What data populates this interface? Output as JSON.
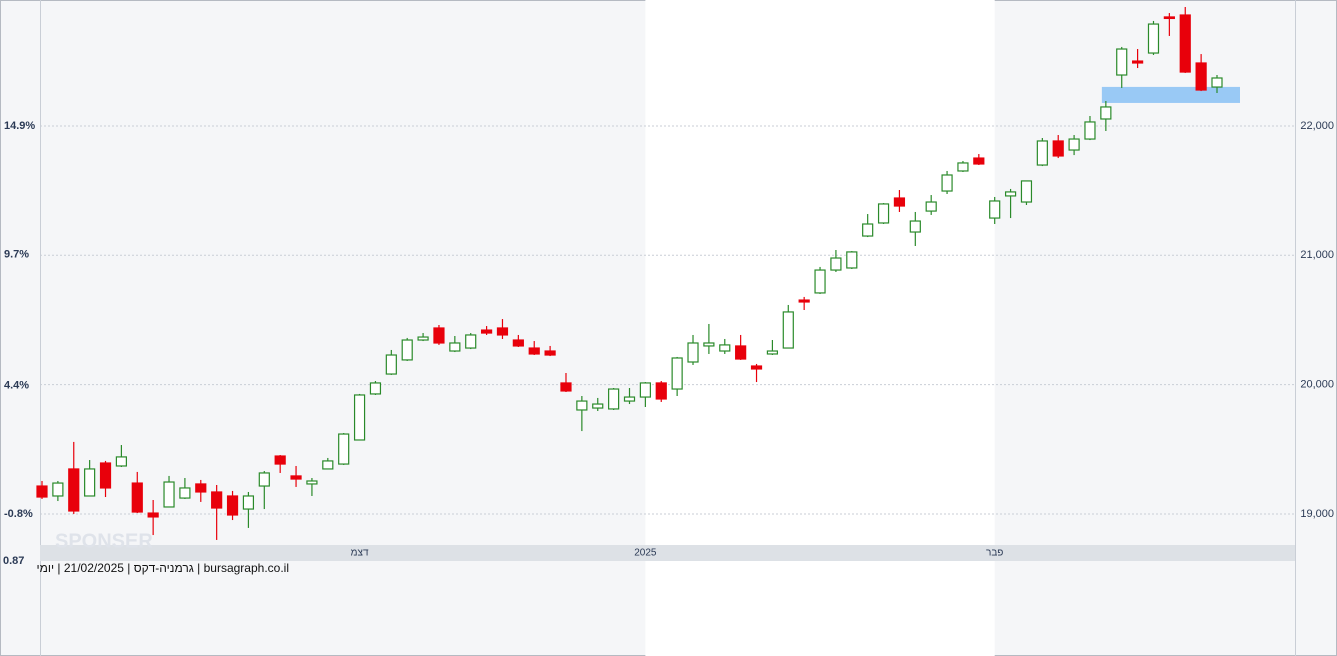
{
  "chart_data": {
    "type": "candlestick",
    "watermark": "SPONSER",
    "corner_label": "0.87",
    "caption": "bursagraph.co.il | גרמניה-דקס | 21/02/2025 | יומי",
    "categories": [
      null,
      null,
      null,
      null,
      null,
      null,
      null,
      null,
      null,
      null,
      null,
      null,
      null,
      null,
      null,
      null,
      null,
      null,
      null,
      null,
      "דצמ",
      null,
      null,
      null,
      null,
      null,
      null,
      null,
      null,
      null,
      null,
      null,
      null,
      null,
      null,
      null,
      null,
      null,
      "2025",
      null,
      null,
      null,
      null,
      null,
      null,
      null,
      null,
      null,
      null,
      null,
      null,
      null,
      null,
      null,
      null,
      null,
      null,
      null,
      null,
      null,
      "פבר",
      null,
      null,
      null,
      null,
      null,
      null,
      null,
      null,
      null,
      null,
      null,
      null,
      null,
      null
    ],
    "up_color": "#2a8a2a",
    "down_color": "#e8000b",
    "zone": {
      "low": 22178,
      "high": 22302,
      "color": "#99c9f5"
    },
    "series": [
      {
        "open": [
          19216,
          19139,
          19348,
          19139,
          19394,
          19371,
          19239,
          19007,
          19054,
          19123,
          19232,
          19170,
          19139,
          19038,
          19216,
          19448,
          19294,
          19232,
          19348,
          19386,
          19572,
          19928,
          20082,
          20191,
          20345,
          20438,
          20260,
          20283,
          20422,
          20438,
          20345,
          20283,
          20260,
          20013,
          19804,
          19819,
          19812,
          19873,
          19904,
          20013,
          19966,
          20175,
          20299,
          20260,
          20299,
          20144,
          20237,
          20283,
          20654,
          20709,
          20886,
          20902,
          21149,
          21250,
          21443,
          21180,
          21342,
          21497,
          21652,
          21752,
          21288,
          21459,
          21412,
          21698,
          21884,
          21814,
          21899,
          22054,
          22394,
          22502,
          22564,
          22843,
          22858,
          22487,
          22301
        ],
        "high": [
          19255,
          19255,
          19557,
          19417,
          19410,
          19533,
          19325,
          19108,
          19294,
          19278,
          19263,
          19224,
          19178,
          19170,
          19332,
          19456,
          19371,
          19278,
          19433,
          19626,
          19928,
          20028,
          20268,
          20361,
          20399,
          20461,
          20376,
          20399,
          20453,
          20507,
          20384,
          20337,
          20299,
          20090,
          19912,
          19897,
          19974,
          19974,
          20020,
          20028,
          20214,
          20384,
          20469,
          20353,
          20384,
          20160,
          20345,
          20616,
          20678,
          20910,
          21041,
          21033,
          21319,
          21404,
          21505,
          21335,
          21466,
          21652,
          21729,
          21783,
          21451,
          21513,
          21575,
          21907,
          21930,
          21930,
          22077,
          22193,
          22611,
          22595,
          22812,
          22873,
          22920,
          22556,
          22394
        ],
        "low": [
          19116,
          19100,
          19000,
          19139,
          19131,
          19363,
          19007,
          18837,
          19054,
          19116,
          19093,
          18799,
          18953,
          18892,
          19038,
          19317,
          19209,
          19139,
          19348,
          19379,
          19572,
          19920,
          20075,
          20183,
          20337,
          20307,
          20252,
          20275,
          20384,
          20353,
          20291,
          20229,
          20221,
          19943,
          19641,
          19796,
          19804,
          19850,
          19827,
          19866,
          19912,
          20152,
          20237,
          20237,
          20191,
          20020,
          20229,
          20283,
          20577,
          20701,
          20871,
          20894,
          21141,
          21242,
          21335,
          21072,
          21312,
          21474,
          21644,
          21698,
          21242,
          21288,
          21389,
          21690,
          21752,
          21775,
          21891,
          21961,
          22294,
          22448,
          22549,
          22696,
          22410,
          22270,
          22255
        ],
        "close": [
          19131,
          19239,
          19023,
          19348,
          19201,
          19441,
          19015,
          18977,
          19247,
          19201,
          19170,
          19046,
          18992,
          19139,
          19317,
          19386,
          19270,
          19255,
          19410,
          19618,
          19920,
          20013,
          20229,
          20345,
          20368,
          20322,
          20322,
          20384,
          20399,
          20384,
          20299,
          20237,
          20229,
          19951,
          19873,
          19850,
          19966,
          19904,
          20013,
          19889,
          20206,
          20322,
          20322,
          20307,
          20198,
          20121,
          20260,
          20562,
          20639,
          20886,
          20979,
          21026,
          21242,
          21397,
          21381,
          21265,
          21412,
          21621,
          21714,
          21706,
          21420,
          21490,
          21575,
          21884,
          21768,
          21899,
          22031,
          22147,
          22595,
          22487,
          22788,
          22835,
          22417,
          22278,
          22371
        ]
      }
    ],
    "ylim": [
      18760,
      22974
    ],
    "yticks": [
      {
        "value": 19000,
        "label": "19,000"
      },
      {
        "value": 20000,
        "label": "20,000"
      },
      {
        "value": 21000,
        "label": "21,000"
      },
      {
        "value": 22000,
        "label": "22,000"
      }
    ],
    "y2lim": [
      -2.05,
      20.0
    ],
    "y2ticks": [
      {
        "value": -0.8,
        "label": "-0.8%"
      },
      {
        "value": 4.4,
        "label": "4.4%"
      },
      {
        "value": 9.7,
        "label": "9.7%"
      },
      {
        "value": 14.9,
        "label": "14.9%"
      }
    ],
    "grid": true
  }
}
